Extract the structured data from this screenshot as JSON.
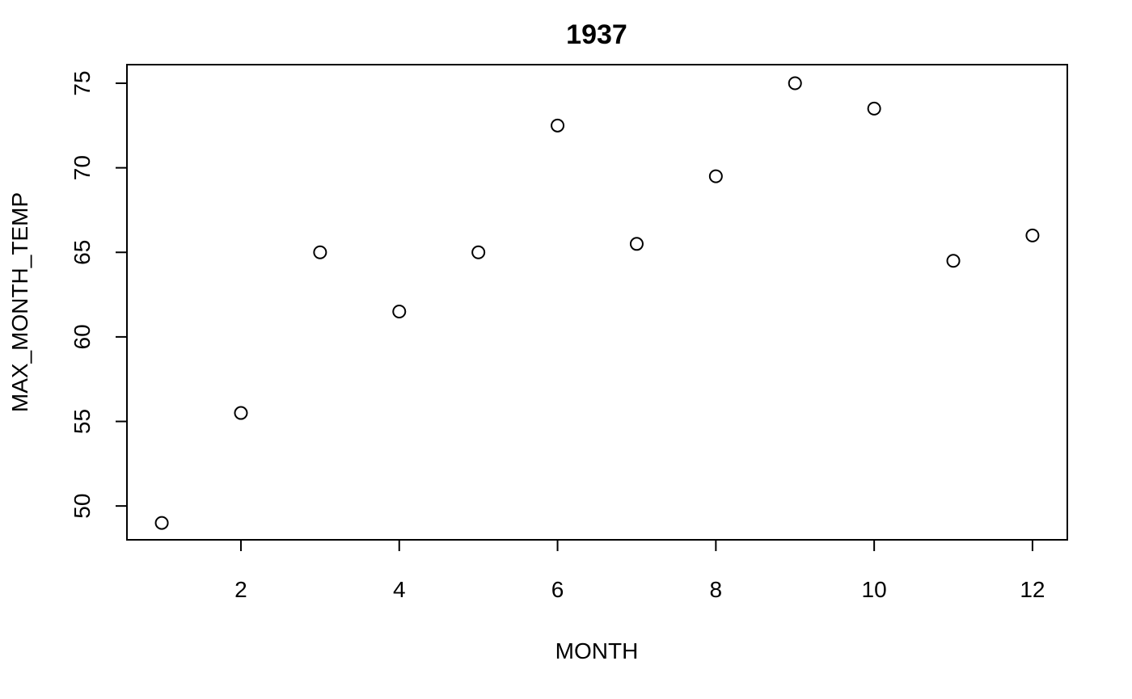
{
  "chart_data": {
    "type": "scatter",
    "title": "1937",
    "xlabel": "MONTH",
    "ylabel": "MAX_MONTH_TEMP",
    "x": [
      1,
      2,
      3,
      4,
      5,
      6,
      7,
      8,
      9,
      10,
      11,
      12
    ],
    "y": [
      49,
      55.5,
      65,
      61.5,
      65,
      72.5,
      65.5,
      69.5,
      75,
      73.5,
      64.5,
      66
    ],
    "xlim": [
      0.56,
      12.44
    ],
    "ylim": [
      48.0,
      76.1
    ],
    "xticks": [
      2,
      4,
      6,
      8,
      10,
      12
    ],
    "yticks": [
      50,
      55,
      60,
      65,
      70,
      75
    ],
    "grid": false,
    "legend": "none",
    "marker": "open-circle",
    "color": "#000000"
  }
}
